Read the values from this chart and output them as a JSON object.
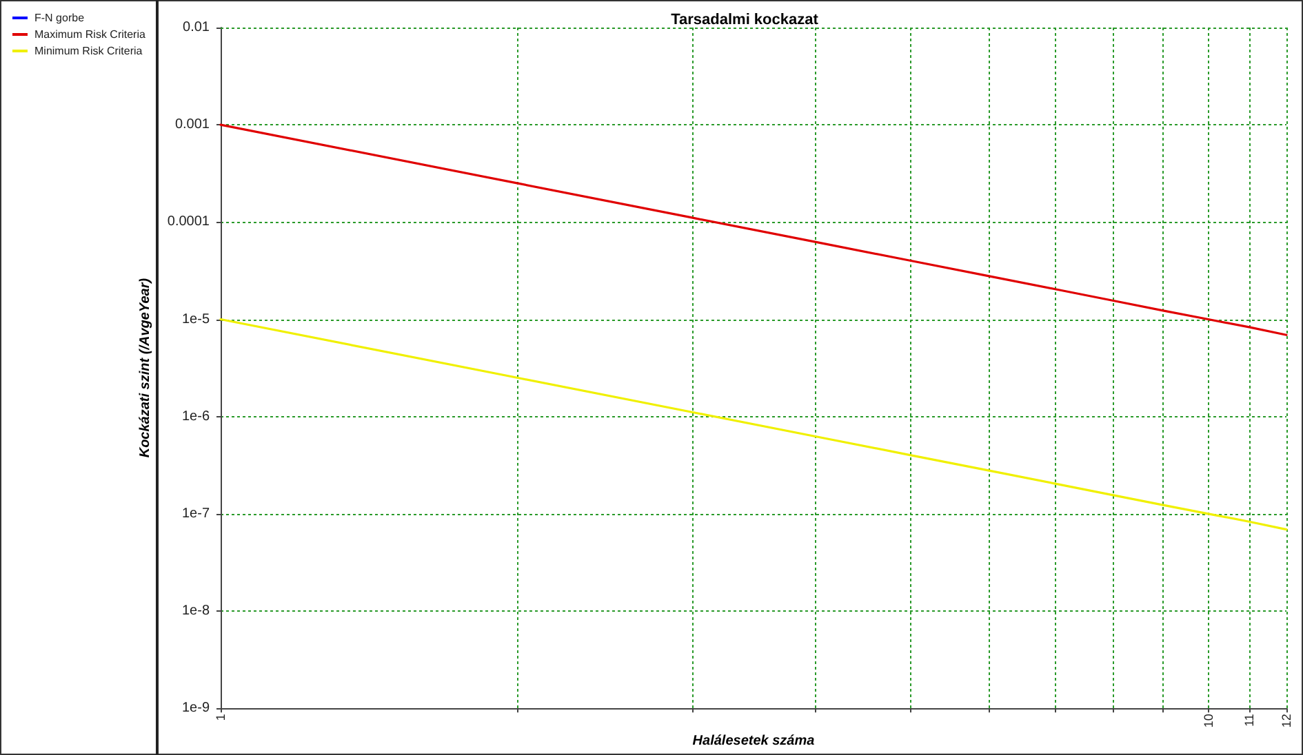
{
  "chart_data": {
    "type": "line",
    "title": "Tarsadalmi kockazat",
    "xlabel": "Halálesetek száma",
    "ylabel": "Kockázati szint (/AvgeYear)",
    "log": "xy",
    "grid": true,
    "legend": "left",
    "line_style": "solid",
    "marker": "none",
    "xlim": [
      1,
      12
    ],
    "xticks": [
      {
        "value": 1,
        "label": "1"
      },
      {
        "value": 2,
        "label": null
      },
      {
        "value": 3,
        "label": null
      },
      {
        "value": 4,
        "label": null
      },
      {
        "value": 5,
        "label": null
      },
      {
        "value": 6,
        "label": null
      },
      {
        "value": 7,
        "label": null
      },
      {
        "value": 8,
        "label": null
      },
      {
        "value": 9,
        "label": null
      },
      10,
      11,
      12
    ],
    "ylim": [
      1e-09,
      0.01
    ],
    "yticks": [
      {
        "value": 1e-09,
        "label": "1e-9"
      },
      {
        "value": 1e-08,
        "label": "1e-8"
      },
      {
        "value": 1e-07,
        "label": "1e-7"
      },
      {
        "value": 1e-06,
        "label": "1e-6"
      },
      {
        "value": 1e-05,
        "label": "1e-5"
      },
      0.0001,
      0.001,
      0.01
    ],
    "series": [
      {
        "name": "F-N gorbe",
        "color": "#0000ff"
      },
      {
        "name": "Maximum Risk Criteria",
        "color": "#e00000",
        "x": [
          1,
          2,
          3,
          4,
          5,
          6,
          7,
          8,
          9,
          10,
          11,
          12
        ],
        "values": [
          0.001,
          0.00025,
          0.000111,
          6.25e-05,
          4e-05,
          2.78e-05,
          2.04e-05,
          1.56e-05,
          1.23e-05,
          1e-05,
          8.3e-06,
          6.9e-06
        ]
      },
      {
        "name": "Minimum Risk Criteria",
        "color": "#f0f000",
        "x": [
          1,
          2,
          3,
          4,
          5,
          6,
          7,
          8,
          9,
          10,
          11,
          12
        ],
        "values": [
          1e-05,
          2.5e-06,
          1.11e-06,
          6.25e-07,
          4e-07,
          2.78e-07,
          2.04e-07,
          1.56e-07,
          1.23e-07,
          1e-07,
          8.3e-08,
          6.9e-08
        ]
      }
    ]
  }
}
